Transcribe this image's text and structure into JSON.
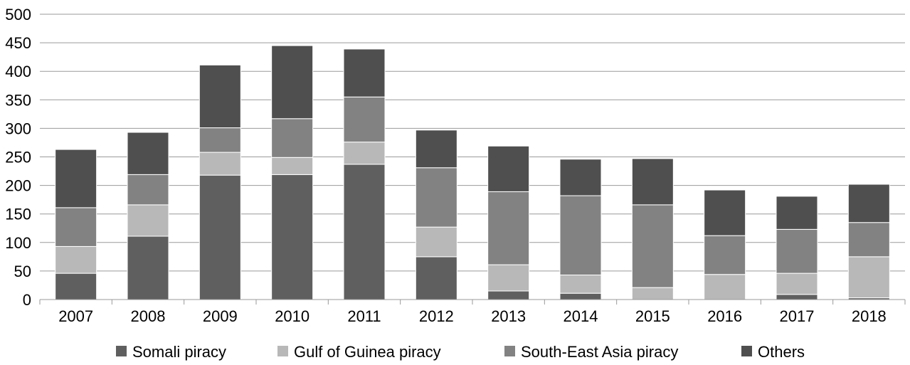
{
  "chart_data": {
    "type": "bar",
    "stacked": true,
    "title": "",
    "xlabel": "",
    "ylabel": "",
    "categories": [
      "2007",
      "2008",
      "2009",
      "2010",
      "2011",
      "2012",
      "2013",
      "2014",
      "2015",
      "2016",
      "2017",
      "2018"
    ],
    "ylim": [
      0,
      500
    ],
    "yticks": [
      0,
      50,
      100,
      150,
      200,
      250,
      300,
      350,
      400,
      450,
      500
    ],
    "grid": true,
    "legend_position": "bottom",
    "series": [
      {
        "name": "Somali piracy",
        "color": "#5f5f5f",
        "values": [
          46,
          111,
          218,
          219,
          237,
          75,
          15,
          11,
          0,
          0,
          9,
          3
        ]
      },
      {
        "name": "Gulf of Guinea piracy",
        "color": "#b8b8b8",
        "values": [
          47,
          55,
          40,
          30,
          39,
          52,
          46,
          32,
          21,
          44,
          37,
          72
        ]
      },
      {
        "name": "South-East Asia piracy",
        "color": "#828282",
        "values": [
          68,
          53,
          43,
          68,
          79,
          104,
          128,
          139,
          145,
          68,
          77,
          60
        ]
      },
      {
        "name": "Others",
        "color": "#4f4f4f",
        "values": [
          102,
          74,
          110,
          128,
          84,
          66,
          80,
          64,
          81,
          80,
          58,
          67
        ]
      }
    ]
  }
}
